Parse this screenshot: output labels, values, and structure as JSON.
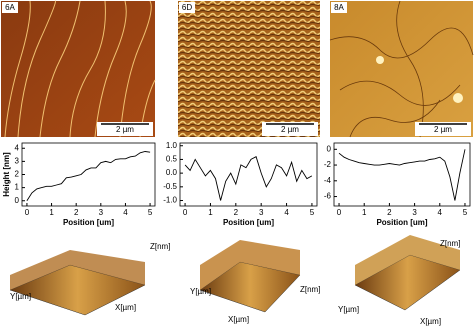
{
  "panels": [
    {
      "label": "6A",
      "scale_bar": "2 µm",
      "axes3d": [
        "Z[nm]",
        "Y[µm]",
        "X[µm]"
      ]
    },
    {
      "label": "6D",
      "scale_bar": "2 µm",
      "axes3d": [
        "Y[µm]",
        "X[µm]",
        "Z[nm]"
      ]
    },
    {
      "label": "8A",
      "scale_bar": "2 µm",
      "axes3d": [
        "Y[µm]",
        "X[µm]",
        "Z[nm]"
      ]
    }
  ],
  "chart_data": [
    {
      "type": "line",
      "y_label": "Height [nm]",
      "x_label": "Position [um]",
      "color": "#000000",
      "x": [
        0,
        0.2,
        0.4,
        0.6,
        0.8,
        1.0,
        1.2,
        1.4,
        1.6,
        1.8,
        2.0,
        2.2,
        2.4,
        2.6,
        2.8,
        3.0,
        3.2,
        3.4,
        3.6,
        3.8,
        4.0,
        4.2,
        4.4,
        4.6,
        4.8,
        5.0
      ],
      "values": [
        0,
        0.6,
        0.9,
        1.0,
        1.1,
        1.1,
        1.2,
        1.3,
        1.75,
        1.8,
        1.9,
        2.0,
        2.35,
        2.5,
        2.5,
        2.9,
        3.0,
        2.9,
        3.15,
        3.2,
        3.2,
        3.35,
        3.4,
        3.65,
        3.75,
        3.7
      ],
      "xlim": [
        -0.2,
        5.2
      ],
      "xticks": [
        0,
        1,
        2,
        3,
        4,
        5
      ],
      "ylim": [
        -0.4,
        4.4
      ],
      "yticks": [
        0,
        1,
        2,
        3,
        4
      ]
    },
    {
      "type": "line",
      "x_label": "Position [um]",
      "color": "#000000",
      "x": [
        0,
        0.2,
        0.4,
        0.6,
        0.8,
        1.0,
        1.2,
        1.4,
        1.6,
        1.8,
        2.0,
        2.2,
        2.4,
        2.6,
        2.8,
        3.0,
        3.2,
        3.4,
        3.6,
        3.8,
        4.0,
        4.2,
        4.4,
        4.6,
        4.8,
        5.0
      ],
      "values": [
        0.3,
        0.1,
        0.5,
        0.2,
        -0.1,
        0.1,
        -0.2,
        -1.0,
        -0.3,
        0.0,
        -0.4,
        0.3,
        0.2,
        0.5,
        0.6,
        0.0,
        -0.5,
        -0.2,
        0.3,
        0.2,
        -0.1,
        0.4,
        -0.3,
        0.1,
        -0.2,
        -0.1
      ],
      "xlim": [
        -0.2,
        5.2
      ],
      "xticks": [
        0,
        1,
        2,
        3,
        4,
        5
      ],
      "ylim": [
        -1.2,
        1.1
      ],
      "yticks": [
        {
          "value": -1,
          "label": "-1.0"
        },
        {
          "value": -0.5,
          "label": "-0.5"
        },
        {
          "value": 0,
          "label": "0.0"
        },
        {
          "value": 0.5,
          "label": "0.5"
        },
        {
          "value": 1,
          "label": "1.0"
        }
      ]
    },
    {
      "type": "line",
      "x_label": "Position [um]",
      "color": "#000000",
      "x": [
        0,
        0.2,
        0.4,
        0.6,
        0.8,
        1.0,
        1.2,
        1.4,
        1.6,
        1.8,
        2.0,
        2.2,
        2.4,
        2.6,
        2.8,
        3.0,
        3.2,
        3.4,
        3.6,
        3.8,
        4.0,
        4.2,
        4.4,
        4.6,
        4.8,
        5.0
      ],
      "values": [
        -0.5,
        -1.0,
        -1.3,
        -1.5,
        -1.7,
        -1.8,
        -1.9,
        -2.0,
        -2.0,
        -1.9,
        -1.8,
        -1.9,
        -2.0,
        -1.8,
        -1.7,
        -1.6,
        -1.5,
        -1.5,
        -1.3,
        -1.2,
        -1.0,
        -1.5,
        -3.5,
        -6.5,
        -3.0,
        0.0
      ],
      "xlim": [
        -0.2,
        5.2
      ],
      "xticks": [
        0,
        1,
        2,
        3,
        4,
        5
      ],
      "ylim": [
        -7.2,
        0.8
      ],
      "yticks": [
        -6,
        -4,
        -2,
        0
      ]
    }
  ]
}
